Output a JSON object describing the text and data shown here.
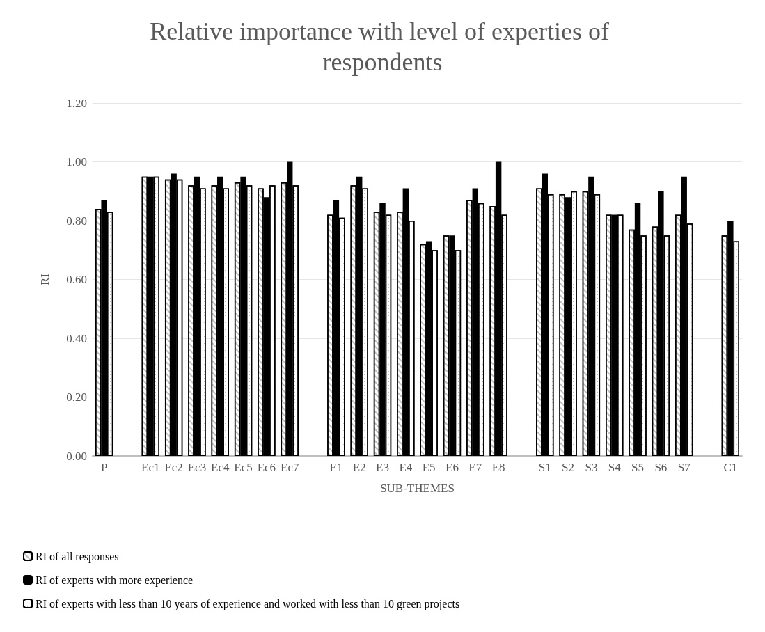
{
  "chart_data": {
    "type": "bar",
    "title": "Relative importance with level of experties of respondents",
    "xlabel": "SUB-THEMES",
    "ylabel": "RI",
    "categories": [
      "P",
      null,
      "Ec1",
      "Ec2",
      "Ec3",
      "Ec4",
      "Ec5",
      "Ec6",
      "Ec7",
      null,
      "E1",
      "E2",
      "E3",
      "E4",
      "E5",
      "E6",
      "E7",
      "E8",
      null,
      "S1",
      "S2",
      "S3",
      "S4",
      "S5",
      "S6",
      "S7",
      null,
      "C1"
    ],
    "series": [
      {
        "name": "RI of all responses",
        "color": "#ffffff",
        "values": [
          0.84,
          null,
          0.95,
          0.94,
          0.92,
          0.92,
          0.93,
          0.91,
          0.93,
          null,
          0.82,
          0.92,
          0.83,
          0.83,
          0.72,
          0.75,
          0.87,
          0.85,
          null,
          0.91,
          0.89,
          0.9,
          0.82,
          0.77,
          0.78,
          0.82,
          null,
          0.75
        ]
      },
      {
        "name": "RI of experts with more experience",
        "color": "#000000",
        "values": [
          0.87,
          null,
          0.95,
          0.96,
          0.95,
          0.95,
          0.95,
          0.88,
          1.0,
          null,
          0.87,
          0.95,
          0.86,
          0.91,
          0.73,
          0.75,
          0.91,
          1.0,
          null,
          0.96,
          0.88,
          0.95,
          0.82,
          0.86,
          0.9,
          0.95,
          null,
          0.8
        ]
      },
      {
        "name": "RI of experts with less than 10 years of experience and worked with less than 10 green projects",
        "color": "#ffffff",
        "values": [
          0.83,
          null,
          0.95,
          0.94,
          0.91,
          0.91,
          0.92,
          0.92,
          0.92,
          null,
          0.81,
          0.91,
          0.82,
          0.8,
          0.7,
          0.7,
          0.86,
          0.82,
          null,
          0.89,
          0.9,
          0.89,
          0.82,
          0.75,
          0.75,
          0.79,
          null,
          0.73
        ]
      }
    ],
    "ylim": [
      0,
      1.2
    ],
    "yticks": [
      {
        "value": 0,
        "label": "0.00"
      },
      {
        "value": 0.2,
        "label": "0.20"
      },
      {
        "value": 0.4,
        "label": "0.40"
      },
      {
        "value": 0.6,
        "label": "0.60"
      },
      {
        "value": 0.8,
        "label": "0.80"
      },
      {
        "value": 1.0,
        "label": "1.00"
      },
      {
        "value": 1.2,
        "label": "1.20"
      }
    ],
    "grid": "y",
    "legend": "bottom left"
  }
}
